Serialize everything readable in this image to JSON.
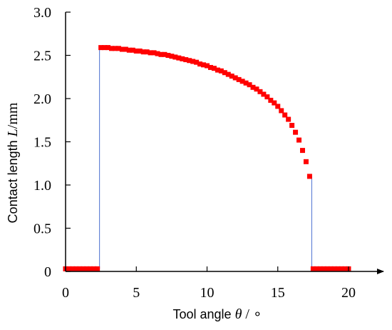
{
  "chart_data": {
    "type": "scatter",
    "title": "",
    "xlabel": {
      "text": "Tool angle ",
      "var": "θ",
      "unit": " / ∘"
    },
    "ylabel": {
      "text": "Contact length ",
      "var": "L",
      "unit": "/mm"
    },
    "xlim": [
      0,
      21
    ],
    "ylim": [
      0,
      3.0
    ],
    "xticks": [
      0,
      5,
      10,
      15,
      20
    ],
    "xtick_labels": [
      "0",
      "5",
      "10",
      "15",
      "20"
    ],
    "yticks": [
      0,
      0.5,
      1.0,
      1.5,
      2.0,
      2.5,
      3.0
    ],
    "ytick_labels": [
      "0",
      "0.5",
      "1.0",
      "1.5",
      "2.0",
      "2.5",
      "3.0"
    ],
    "grid": false,
    "legend": "none",
    "marker_color": "#ff0000",
    "line_color": "#4a6fd0",
    "x": [
      0.0,
      0.25,
      0.5,
      0.75,
      1.0,
      1.25,
      1.5,
      1.75,
      2.0,
      2.25,
      2.5,
      2.75,
      3.0,
      3.25,
      3.5,
      3.75,
      4.0,
      4.25,
      4.5,
      4.75,
      5.0,
      5.25,
      5.5,
      5.75,
      6.0,
      6.25,
      6.5,
      6.75,
      7.0,
      7.25,
      7.5,
      7.75,
      8.0,
      8.25,
      8.5,
      8.75,
      9.0,
      9.25,
      9.5,
      9.75,
      10.0,
      10.25,
      10.5,
      10.75,
      11.0,
      11.25,
      11.5,
      11.75,
      12.0,
      12.25,
      12.5,
      12.75,
      13.0,
      13.25,
      13.5,
      13.75,
      14.0,
      14.25,
      14.5,
      14.75,
      15.0,
      15.25,
      15.5,
      15.75,
      16.0,
      16.25,
      16.5,
      16.75,
      17.0,
      17.25,
      17.5,
      17.75,
      18.0,
      18.25,
      18.5,
      18.75,
      19.0,
      19.25,
      19.5,
      19.75,
      20.0
    ],
    "y": [
      0.03,
      0.03,
      0.03,
      0.03,
      0.03,
      0.03,
      0.03,
      0.03,
      0.03,
      0.03,
      2.59,
      2.59,
      2.59,
      2.58,
      2.58,
      2.58,
      2.57,
      2.57,
      2.56,
      2.56,
      2.55,
      2.55,
      2.54,
      2.54,
      2.53,
      2.53,
      2.52,
      2.51,
      2.51,
      2.5,
      2.49,
      2.48,
      2.47,
      2.46,
      2.45,
      2.44,
      2.43,
      2.42,
      2.4,
      2.39,
      2.38,
      2.36,
      2.35,
      2.33,
      2.32,
      2.3,
      2.28,
      2.26,
      2.24,
      2.22,
      2.2,
      2.18,
      2.16,
      2.13,
      2.11,
      2.08,
      2.05,
      2.02,
      1.98,
      1.95,
      1.91,
      1.86,
      1.81,
      1.76,
      1.69,
      1.61,
      1.52,
      1.4,
      1.27,
      1.1,
      0.03,
      0.03,
      0.03,
      0.03,
      0.03,
      0.03,
      0.03,
      0.03,
      0.03,
      0.03,
      0.03
    ],
    "connectors": [
      {
        "x": 2.4,
        "y0": 0.03,
        "y1": 2.59
      },
      {
        "x": 17.4,
        "y0": 1.1,
        "y1": 0.03
      }
    ]
  }
}
